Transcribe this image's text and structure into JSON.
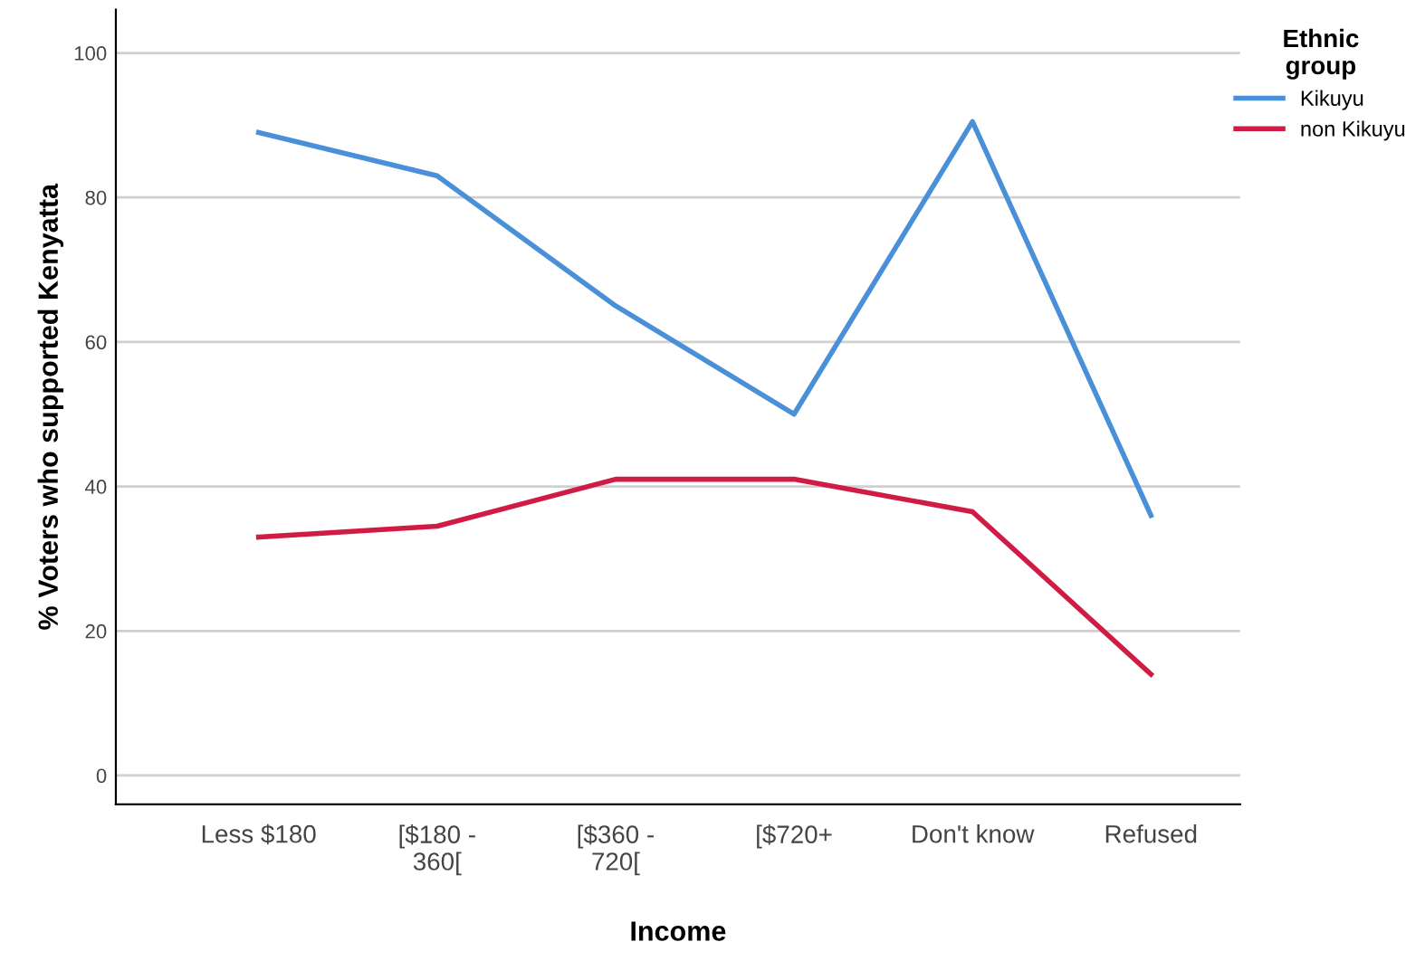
{
  "chart_data": {
    "type": "line",
    "xlabel": "Income",
    "ylabel": "% Voters who supported Kenyatta",
    "legend_title": "Ethnic\ngroup",
    "categories": [
      "Less $180",
      "[$180 -\n360[",
      "[$360 -\n720[",
      "[$720+",
      "Don't know",
      "Refused"
    ],
    "series": [
      {
        "name": "Kikuyu",
        "color": "#4a90d9",
        "values": [
          89,
          83,
          65,
          50,
          90.5,
          36
        ]
      },
      {
        "name": "non Kikuyu",
        "color": "#d01c44",
        "values": [
          33,
          34.5,
          41,
          41,
          36.5,
          14
        ]
      }
    ],
    "ylim": [
      -4,
      106
    ],
    "yticks": [
      0,
      20,
      40,
      60,
      80,
      100
    ],
    "grid": "y",
    "legend": "top right",
    "marker": "none",
    "line_style": "solid"
  }
}
